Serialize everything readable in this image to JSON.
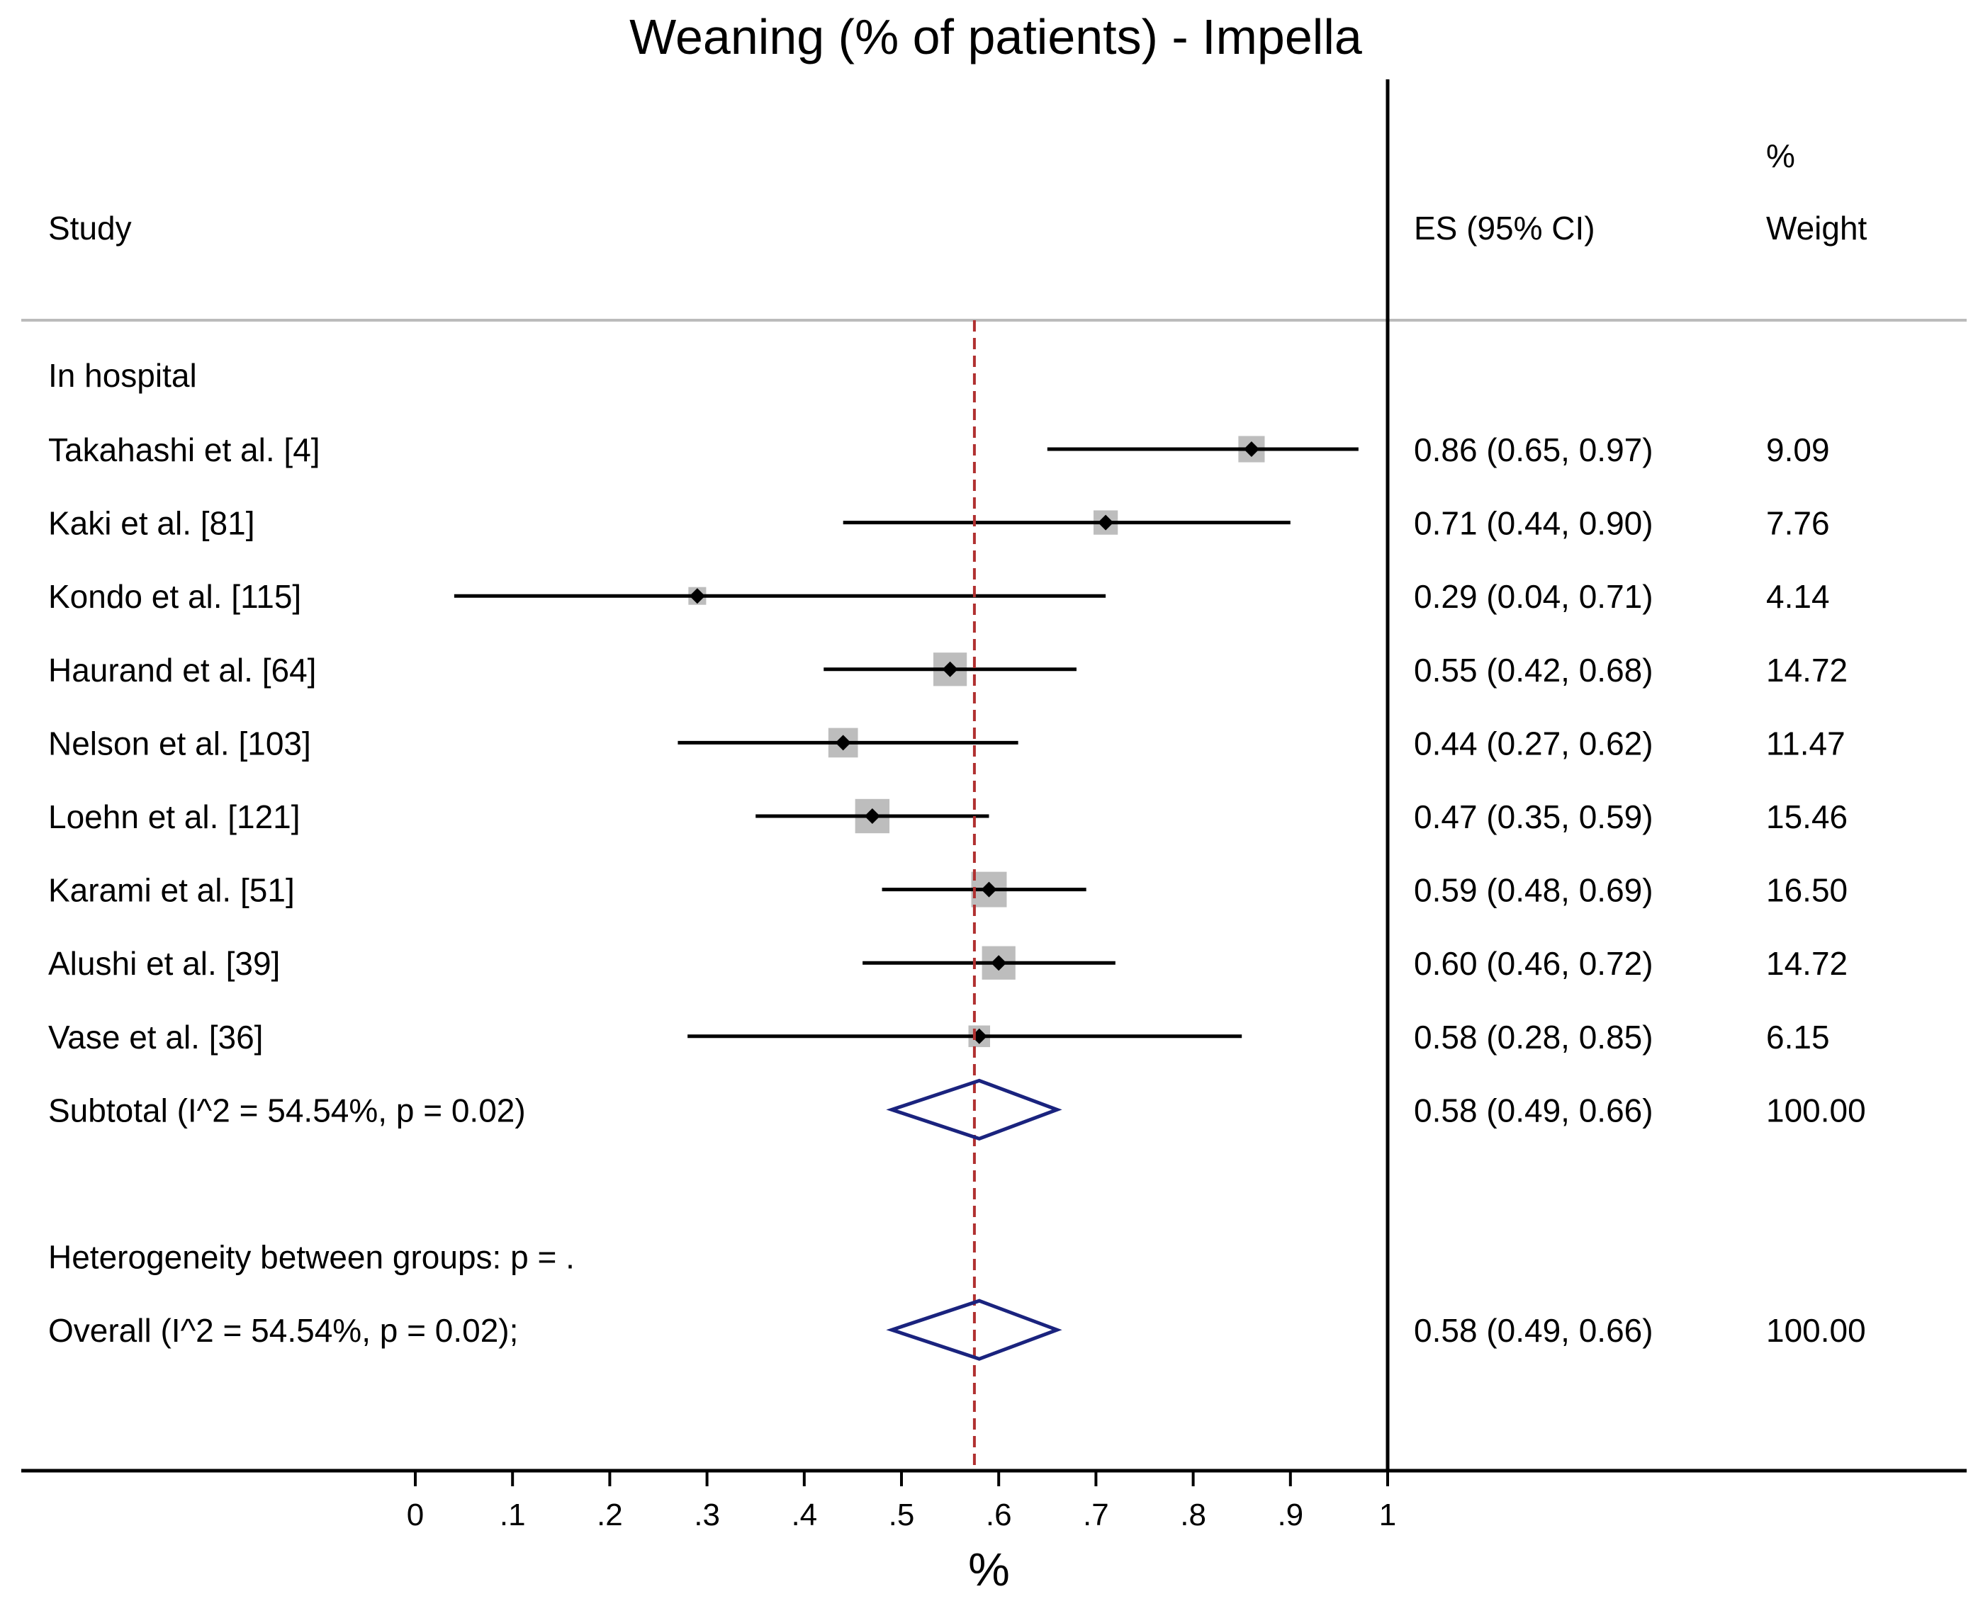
{
  "chart_data": {
    "type": "forest",
    "title": "Weaning (% of patients) - Impella",
    "xlabel": "%",
    "xlim": [
      0,
      1
    ],
    "xticks": [
      0,
      0.1,
      0.2,
      0.3,
      0.4,
      0.5,
      0.6,
      0.7,
      0.8,
      0.9,
      1
    ],
    "xtick_labels": [
      "0",
      ".1",
      ".2",
      ".3",
      ".4",
      ".5",
      ".6",
      ".7",
      ".8",
      ".9",
      "1"
    ],
    "columns": {
      "study": "Study",
      "es": "ES (95% CI)",
      "weight_line1": "%",
      "weight_line2": "Weight"
    },
    "group_label": "In hospital",
    "studies": [
      {
        "label": "Takahashi et al. [4]",
        "es": 0.86,
        "lo": 0.65,
        "hi": 0.97,
        "weight": 9.09,
        "es_text": "0.86 (0.65, 0.97)",
        "weight_text": "9.09"
      },
      {
        "label": "Kaki et al. [81]",
        "es": 0.71,
        "lo": 0.44,
        "hi": 0.9,
        "weight": 7.76,
        "es_text": "0.71 (0.44, 0.90)",
        "weight_text": "7.76"
      },
      {
        "label": "Kondo et al. [115]",
        "es": 0.29,
        "lo": 0.04,
        "hi": 0.71,
        "weight": 4.14,
        "es_text": "0.29 (0.04, 0.71)",
        "weight_text": "4.14"
      },
      {
        "label": "Haurand et al. [64]",
        "es": 0.55,
        "lo": 0.42,
        "hi": 0.68,
        "weight": 14.72,
        "es_text": "0.55 (0.42, 0.68)",
        "weight_text": "14.72"
      },
      {
        "label": "Nelson et al. [103]",
        "es": 0.44,
        "lo": 0.27,
        "hi": 0.62,
        "weight": 11.47,
        "es_text": "0.44 (0.27, 0.62)",
        "weight_text": "11.47"
      },
      {
        "label": "Loehn et al. [121]",
        "es": 0.47,
        "lo": 0.35,
        "hi": 0.59,
        "weight": 15.46,
        "es_text": "0.47 (0.35, 0.59)",
        "weight_text": "15.46"
      },
      {
        "label": "Karami et al. [51]",
        "es": 0.59,
        "lo": 0.48,
        "hi": 0.69,
        "weight": 16.5,
        "es_text": "0.59 (0.48, 0.69)",
        "weight_text": "16.50"
      },
      {
        "label": "Alushi et al. [39]",
        "es": 0.6,
        "lo": 0.46,
        "hi": 0.72,
        "weight": 14.72,
        "es_text": "0.60 (0.46, 0.72)",
        "weight_text": "14.72"
      },
      {
        "label": "Vase et al. [36]",
        "es": 0.58,
        "lo": 0.28,
        "hi": 0.85,
        "weight": 6.15,
        "es_text": "0.58 (0.28, 0.85)",
        "weight_text": "6.15"
      }
    ],
    "subtotal": {
      "label": "Subtotal  (I^2 = 54.54%, p = 0.02)",
      "es": 0.58,
      "lo": 0.49,
      "hi": 0.66,
      "es_text": "0.58 (0.49, 0.66)",
      "weight_text": "100.00"
    },
    "heterogeneity": "Heterogeneity between groups: p = .",
    "overall": {
      "label": "Overall  (I^2 = 54.54%, p = 0.02);",
      "es": 0.58,
      "lo": 0.49,
      "hi": 0.66,
      "es_text": "0.58 (0.49, 0.66)",
      "weight_text": "100.00"
    },
    "reference_line": 0.575,
    "colors": {
      "text": "#000000",
      "box": "#bdbdbd",
      "diamond": "#1a237e",
      "ref_line": "#b03030",
      "divider": "#bbbbbb"
    }
  }
}
